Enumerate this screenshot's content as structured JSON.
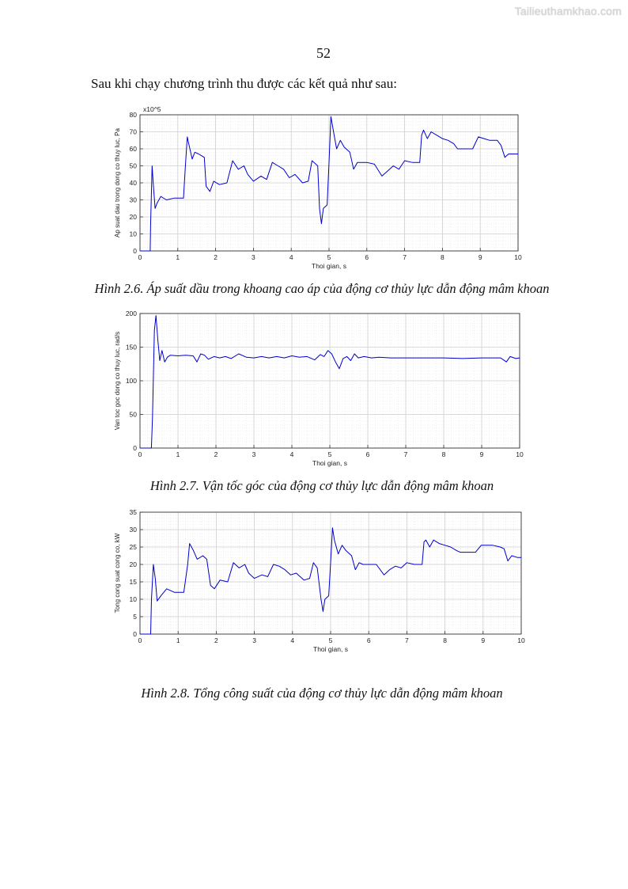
{
  "watermark": "Tailieuthamkhao.com",
  "page_number": "52",
  "intro_text": "Sau khi chạy chương trình thu được các kết quả như sau:",
  "figures": [
    {
      "caption": "Hình 2.6. Áp suất dầu trong khoang cao áp của động cơ thủy lực dẫn động mâm khoan",
      "chart_data": {
        "type": "line",
        "title": "",
        "xlabel": "Thoi gian, s",
        "ylabel": "Ap suat dau trong dong co thuy luc, Pa",
        "exponent_label": "x10^5",
        "xlim": [
          0,
          10
        ],
        "ylim": [
          0,
          80
        ],
        "xticks": [
          0,
          1,
          2,
          3,
          4,
          5,
          6,
          7,
          8,
          9,
          10
        ],
        "yticks": [
          0,
          10,
          20,
          30,
          40,
          50,
          60,
          70,
          80
        ],
        "grid": true,
        "line_color": "#0000cc",
        "x": [
          0,
          0.27,
          0.28,
          0.32,
          0.35,
          0.4,
          0.45,
          0.55,
          0.7,
          0.9,
          1.15,
          1.2,
          1.25,
          1.3,
          1.38,
          1.45,
          1.55,
          1.7,
          1.75,
          1.85,
          1.95,
          2.1,
          2.3,
          2.45,
          2.6,
          2.75,
          2.85,
          3.0,
          3.2,
          3.35,
          3.5,
          3.65,
          3.8,
          3.95,
          4.1,
          4.3,
          4.45,
          4.55,
          4.7,
          4.75,
          4.8,
          4.85,
          4.95,
          5.0,
          5.05,
          5.12,
          5.2,
          5.3,
          5.4,
          5.55,
          5.65,
          5.75,
          5.85,
          6.0,
          6.2,
          6.4,
          6.55,
          6.7,
          6.85,
          7.0,
          7.2,
          7.4,
          7.45,
          7.5,
          7.6,
          7.7,
          7.85,
          8.0,
          8.15,
          8.3,
          8.4,
          8.6,
          8.8,
          8.95,
          9.1,
          9.25,
          9.45,
          9.55,
          9.65,
          9.75,
          9.9,
          10.0
        ],
        "y": [
          0,
          0,
          15,
          50,
          40,
          25,
          28,
          32,
          30,
          31,
          31,
          50,
          67,
          62,
          54,
          58,
          57,
          55,
          38,
          35,
          41,
          39,
          40,
          53,
          48,
          50,
          45,
          41,
          44,
          42,
          52,
          50,
          48,
          43,
          45,
          40,
          41,
          53,
          50,
          25,
          16,
          25,
          27,
          52,
          79,
          70,
          60,
          65,
          61,
          58,
          48,
          52,
          52,
          52,
          51,
          44,
          47,
          50,
          48,
          53,
          52,
          52,
          68,
          71,
          66,
          70,
          68,
          66,
          65,
          63,
          60,
          60,
          60,
          67,
          66,
          65,
          65,
          62,
          55,
          57,
          57,
          57
        ]
      }
    },
    {
      "caption": "Hình 2.7. Vận tốc góc của động cơ thủy lực dẫn động mâm khoan",
      "chart_data": {
        "type": "line",
        "title": "",
        "xlabel": "Thoi gian, s",
        "ylabel": "Van toc goc dong co thuy luc, rad/s",
        "xlim": [
          0,
          10
        ],
        "ylim": [
          0,
          200
        ],
        "xticks": [
          0,
          1,
          2,
          3,
          4,
          5,
          6,
          7,
          8,
          9,
          10
        ],
        "yticks": [
          0,
          50,
          100,
          150,
          200
        ],
        "grid": true,
        "line_color": "#0000cc",
        "x": [
          0,
          0.3,
          0.33,
          0.38,
          0.42,
          0.47,
          0.52,
          0.58,
          0.65,
          0.72,
          0.8,
          1.0,
          1.2,
          1.4,
          1.5,
          1.6,
          1.7,
          1.8,
          1.95,
          2.1,
          2.25,
          2.4,
          2.6,
          2.8,
          3.0,
          3.2,
          3.4,
          3.6,
          3.8,
          4.0,
          4.2,
          4.4,
          4.6,
          4.75,
          4.85,
          4.95,
          5.05,
          5.15,
          5.25,
          5.35,
          5.45,
          5.55,
          5.65,
          5.75,
          5.9,
          6.1,
          6.3,
          6.6,
          7.0,
          7.5,
          8.0,
          8.5,
          9.0,
          9.5,
          9.65,
          9.75,
          9.9,
          10.0
        ],
        "y": [
          0,
          0,
          45,
          175,
          197,
          160,
          130,
          145,
          128,
          135,
          138,
          137,
          138,
          137,
          128,
          140,
          138,
          132,
          136,
          134,
          136,
          133,
          140,
          135,
          134,
          136,
          134,
          136,
          134,
          137,
          135,
          136,
          131,
          139,
          136,
          145,
          140,
          128,
          118,
          133,
          136,
          130,
          140,
          134,
          136,
          134,
          135,
          134,
          134,
          134,
          134,
          133,
          134,
          134,
          128,
          136,
          133,
          134
        ]
      }
    },
    {
      "caption": "Hình 2.8. Tổng công suất của động cơ thủy lực dẫn động mâm khoan",
      "chart_data": {
        "type": "line",
        "title": "",
        "xlabel": "Thoi gian, s",
        "ylabel": "Tong cong suat cong co, kW",
        "xlim": [
          0,
          10
        ],
        "ylim": [
          0,
          35
        ],
        "xticks": [
          0,
          1,
          2,
          3,
          4,
          5,
          6,
          7,
          8,
          9,
          10
        ],
        "yticks": [
          0,
          5,
          10,
          15,
          20,
          25,
          30,
          35
        ],
        "grid": true,
        "line_color": "#0000cc",
        "x": [
          0,
          0.28,
          0.3,
          0.35,
          0.4,
          0.45,
          0.55,
          0.7,
          0.9,
          1.15,
          1.25,
          1.3,
          1.4,
          1.5,
          1.65,
          1.75,
          1.85,
          1.95,
          2.1,
          2.3,
          2.45,
          2.6,
          2.75,
          2.85,
          3.0,
          3.2,
          3.35,
          3.5,
          3.65,
          3.8,
          3.95,
          4.1,
          4.3,
          4.45,
          4.55,
          4.65,
          4.75,
          4.8,
          4.85,
          4.95,
          5.0,
          5.05,
          5.1,
          5.2,
          5.3,
          5.4,
          5.55,
          5.65,
          5.75,
          5.85,
          6.0,
          6.2,
          6.4,
          6.55,
          6.7,
          6.85,
          7.0,
          7.2,
          7.4,
          7.45,
          7.5,
          7.6,
          7.7,
          7.85,
          8.0,
          8.15,
          8.3,
          8.4,
          8.6,
          8.8,
          8.95,
          9.1,
          9.25,
          9.45,
          9.55,
          9.65,
          9.75,
          9.9,
          10.0
        ],
        "y": [
          0,
          0,
          10,
          20,
          16,
          9.5,
          11,
          13,
          12,
          12,
          20,
          26,
          24,
          21.5,
          22.5,
          21.5,
          14,
          13,
          15.5,
          15,
          20.5,
          19,
          20,
          17.5,
          16,
          17,
          16.5,
          20,
          19.5,
          18.5,
          17,
          17.5,
          15.5,
          16,
          20.5,
          19,
          10,
          6.5,
          10,
          11,
          20.5,
          30.5,
          27,
          23,
          25.5,
          24,
          22.5,
          18.5,
          20.5,
          20,
          20,
          20,
          17,
          18.5,
          19.5,
          19,
          20.5,
          20,
          20,
          26.5,
          27,
          25,
          27,
          26,
          25.5,
          25,
          24,
          23.5,
          23.5,
          23.5,
          25.5,
          25.5,
          25.5,
          25,
          24.5,
          21,
          22.5,
          22,
          22
        ]
      }
    }
  ]
}
